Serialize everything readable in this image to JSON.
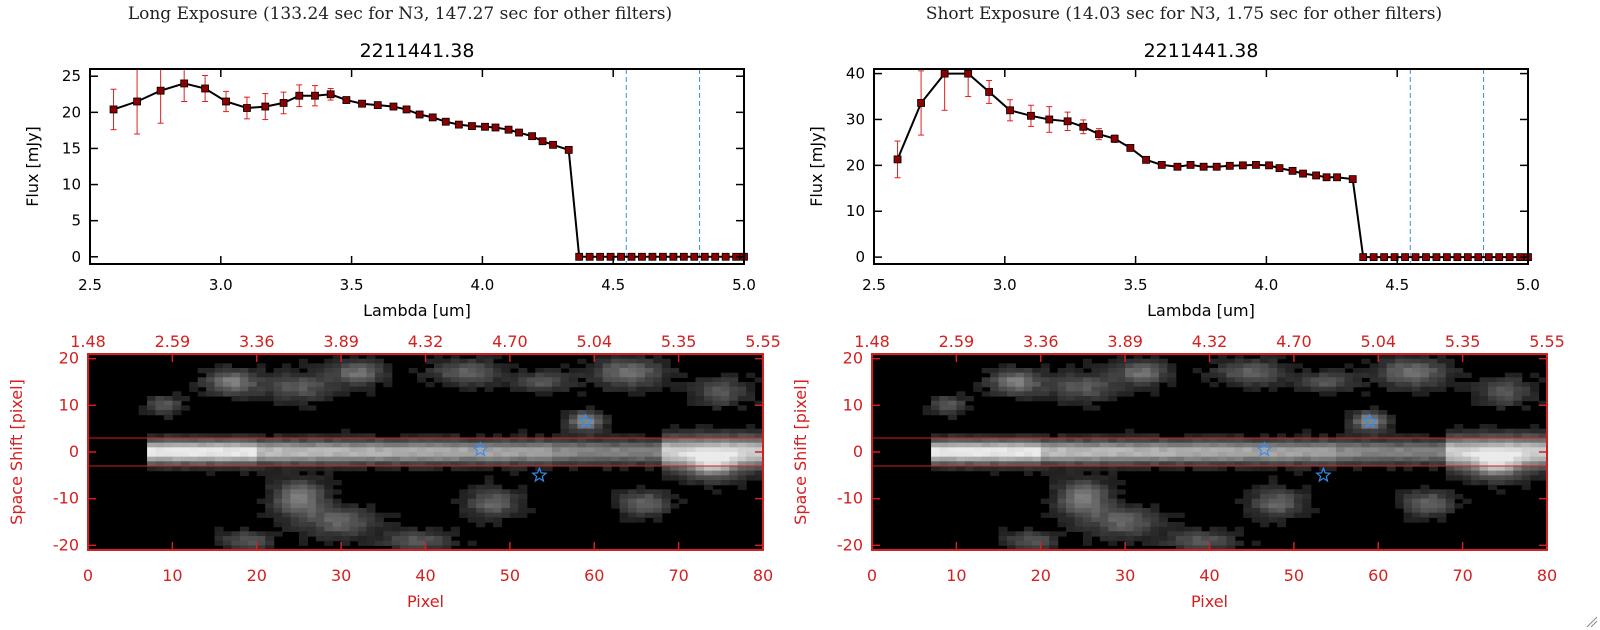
{
  "panels": [
    {
      "heading": "Long Exposure (133.24 sec for N3, 147.27 sec for other filters)",
      "spectrum": {
        "title": "2211441.38",
        "xlabel": "Lambda [um]",
        "ylabel": "Flux [mJy]",
        "xticks": [
          "2.5",
          "3.0",
          "3.5",
          "4.0",
          "4.5",
          "5.0"
        ],
        "yticks": [
          "0",
          "5",
          "10",
          "15",
          "20",
          "25"
        ]
      },
      "image": {
        "top_ticks": [
          "1.48",
          "2.59",
          "3.36",
          "3.89",
          "4.32",
          "4.70",
          "5.04",
          "5.35",
          "5.55"
        ],
        "xticks": [
          "0",
          "10",
          "20",
          "30",
          "40",
          "50",
          "60",
          "70",
          "80"
        ],
        "yticks": [
          "20",
          "10",
          "0",
          "-10",
          "-20"
        ],
        "xlabel": "Pixel",
        "ylabel": "Space Shift [pixel]"
      }
    },
    {
      "heading": "Short Exposure (14.03 sec for N3, 1.75 sec for other filters)",
      "spectrum": {
        "title": "2211441.38",
        "xlabel": "Lambda [um]",
        "ylabel": "Flux [mJy]",
        "xticks": [
          "2.5",
          "3.0",
          "3.5",
          "4.0",
          "4.5",
          "5.0"
        ],
        "yticks": [
          "0",
          "10",
          "20",
          "30",
          "40"
        ]
      },
      "image": {
        "top_ticks": [
          "1.48",
          "2.59",
          "3.36",
          "3.89",
          "4.32",
          "4.70",
          "5.04",
          "5.35",
          "5.55"
        ],
        "xticks": [
          "0",
          "10",
          "20",
          "30",
          "40",
          "50",
          "60",
          "70",
          "80"
        ],
        "yticks": [
          "20",
          "10",
          "0",
          "-10",
          "-20"
        ],
        "xlabel": "Pixel",
        "ylabel": "Space Shift [pixel]"
      }
    }
  ],
  "colors": {
    "curve": "#000000",
    "marker": "#8b0000",
    "error_bar": "#e02020",
    "dashed_line": "#3a8ee6",
    "image_axes": "#d42020",
    "star_marker": "#3a8ee6"
  },
  "chart_data": [
    {
      "type": "line",
      "title": "2211441.38",
      "xlabel": "Lambda [um]",
      "ylabel": "Flux [mJy]",
      "xlim": [
        2.5,
        5.0
      ],
      "ylim": [
        -1,
        26
      ],
      "vlines": [
        4.55,
        4.83
      ],
      "x": [
        2.59,
        2.68,
        2.77,
        2.86,
        2.94,
        3.02,
        3.1,
        3.17,
        3.24,
        3.3,
        3.36,
        3.42,
        3.48,
        3.54,
        3.6,
        3.66,
        3.71,
        3.76,
        3.81,
        3.86,
        3.91,
        3.96,
        4.01,
        4.05,
        4.1,
        4.14,
        4.19,
        4.23,
        4.27,
        4.33,
        4.37,
        4.41,
        4.45,
        4.49,
        4.53,
        4.57,
        4.61,
        4.65,
        4.69,
        4.73,
        4.77,
        4.81,
        4.85,
        4.89,
        4.93,
        4.97,
        5.0
      ],
      "y": [
        20.4,
        21.5,
        23.0,
        24.0,
        23.3,
        21.5,
        20.6,
        20.8,
        21.3,
        22.3,
        22.3,
        22.5,
        21.7,
        21.2,
        21.0,
        20.8,
        20.4,
        19.7,
        19.3,
        18.7,
        18.3,
        18.1,
        18.0,
        17.9,
        17.6,
        17.2,
        16.7,
        16.0,
        15.5,
        14.8,
        0,
        0,
        0,
        0,
        0,
        0,
        0,
        0,
        0,
        0,
        0,
        0,
        0,
        0,
        0,
        0,
        0
      ],
      "yerr": [
        2.8,
        4.5,
        4.5,
        2.5,
        1.8,
        1.4,
        1.5,
        1.8,
        1.5,
        1.5,
        1.4,
        0.8,
        0.4,
        0.4,
        0.3,
        0.3,
        0.3,
        0.3,
        0.3,
        0.3,
        0.3,
        0.3,
        0.3,
        0.3,
        0.3,
        0.3,
        0.3,
        0.3,
        0.3,
        0.3,
        0,
        0,
        0,
        0,
        0,
        0,
        0,
        0,
        0,
        0,
        0,
        0,
        0,
        0,
        0,
        0,
        0
      ]
    },
    {
      "type": "line",
      "title": "2211441.38",
      "xlabel": "Lambda [um]",
      "ylabel": "Flux [mJy]",
      "xlim": [
        2.5,
        5.0
      ],
      "ylim": [
        -1.5,
        41
      ],
      "vlines": [
        4.55,
        4.83
      ],
      "x": [
        2.59,
        2.68,
        2.77,
        2.86,
        2.94,
        3.02,
        3.1,
        3.17,
        3.24,
        3.3,
        3.36,
        3.42,
        3.48,
        3.54,
        3.6,
        3.66,
        3.71,
        3.76,
        3.81,
        3.86,
        3.91,
        3.96,
        4.01,
        4.05,
        4.1,
        4.14,
        4.19,
        4.23,
        4.27,
        4.33,
        4.37,
        4.41,
        4.45,
        4.49,
        4.53,
        4.57,
        4.61,
        4.65,
        4.69,
        4.73,
        4.77,
        4.81,
        4.85,
        4.89,
        4.93,
        4.97,
        5.0
      ],
      "y": [
        21.3,
        33.6,
        40.0,
        40.0,
        36.0,
        32.0,
        30.8,
        30.0,
        29.6,
        28.4,
        26.8,
        25.8,
        23.8,
        21.2,
        20.1,
        19.7,
        20.1,
        19.7,
        19.7,
        19.9,
        20.0,
        20.1,
        20.0,
        19.4,
        18.8,
        18.2,
        17.8,
        17.4,
        17.4,
        17.0,
        0,
        0,
        0,
        0,
        0,
        0,
        0,
        0,
        0,
        0,
        0,
        0,
        0,
        0,
        0,
        0,
        0
      ],
      "yerr": [
        4.0,
        7.0,
        8.0,
        5.0,
        2.5,
        2.3,
        2.3,
        2.8,
        2.0,
        1.5,
        1.2,
        0.8,
        0.5,
        0.5,
        0.4,
        0.4,
        0.4,
        0.4,
        0.4,
        0.4,
        0.4,
        0.4,
        0.4,
        0.4,
        0.4,
        0.4,
        0.4,
        0.4,
        0.4,
        0.4,
        0,
        0,
        0,
        0,
        0,
        0,
        0,
        0,
        0,
        0,
        0,
        0,
        0,
        0,
        0,
        0,
        0
      ]
    },
    {
      "type": "heatmap",
      "xlabel": "Pixel",
      "ylabel": "Space Shift [pixel]",
      "xlim": [
        0,
        80
      ],
      "ylim": [
        -21,
        21
      ],
      "box_rows": [
        -3,
        3
      ],
      "stars": [
        {
          "x": 59,
          "y": 6.5
        },
        {
          "x": 46.5,
          "y": 0.5
        },
        {
          "x": 53.5,
          "y": -5
        }
      ]
    },
    {
      "type": "heatmap",
      "xlabel": "Pixel",
      "ylabel": "Space Shift [pixel]",
      "xlim": [
        0,
        80
      ],
      "ylim": [
        -21,
        21
      ],
      "box_rows": [
        -3,
        3
      ],
      "stars": [
        {
          "x": 59,
          "y": 6.5
        },
        {
          "x": 46.5,
          "y": 0.5
        },
        {
          "x": 53.5,
          "y": -5
        }
      ]
    }
  ]
}
